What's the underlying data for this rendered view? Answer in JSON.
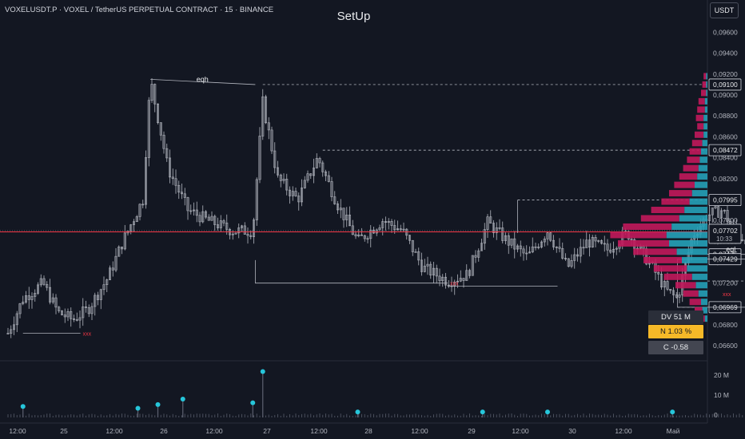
{
  "header": {
    "symbol": "VOXELUSDT.P · VOXEL / TetherUS PERPETUAL CONTRACT · 15 · BINANCE",
    "title": "SetUp",
    "currency": "USDT"
  },
  "info_boxes": {
    "dv": "DV 51 M",
    "n": "N 1.03 %",
    "c": "C  -0.58"
  },
  "chart_data": {
    "type": "candlestick",
    "price_axis": {
      "ticks": [
        "0,09600",
        "0,09400",
        "0,09200",
        "0,09000",
        "0,08800",
        "0,08600",
        "0,08400",
        "0,08200",
        "0,08000",
        "0,07800",
        "0,07600",
        "0,07400",
        "0,07200",
        "0,07000",
        "0,06800",
        "0,06600"
      ],
      "ylim": [
        0.0651,
        0.0968
      ]
    },
    "time_axis": {
      "ticks": [
        "12:00",
        "25",
        "12:00",
        "26",
        "12:00",
        "27",
        "12:00",
        "28",
        "12:00",
        "29",
        "12:00",
        "30",
        "12:00",
        "Май"
      ]
    },
    "volume_axis": {
      "ticks": [
        "20 M",
        "10 M",
        "0"
      ]
    },
    "price_path": [
      [
        0.0,
        0.0672
      ],
      [
        0.3,
        0.0705
      ],
      [
        0.7,
        0.072
      ],
      [
        1.0,
        0.0692
      ],
      [
        1.3,
        0.0685
      ],
      [
        1.6,
        0.0695
      ],
      [
        2.0,
        0.0725
      ],
      [
        2.3,
        0.076
      ],
      [
        2.7,
        0.08
      ],
      [
        2.85,
        0.0915
      ],
      [
        3.2,
        0.083
      ],
      [
        3.6,
        0.079
      ],
      [
        4.0,
        0.078
      ],
      [
        4.5,
        0.077
      ],
      [
        4.9,
        0.077
      ],
      [
        5.1,
        0.0893
      ],
      [
        5.4,
        0.082
      ],
      [
        5.8,
        0.08
      ],
      [
        6.2,
        0.084
      ],
      [
        6.6,
        0.0795
      ],
      [
        7.0,
        0.076
      ],
      [
        7.5,
        0.078
      ],
      [
        7.9,
        0.077
      ],
      [
        8.3,
        0.0735
      ],
      [
        8.8,
        0.0722
      ],
      [
        9.2,
        0.0728
      ],
      [
        9.6,
        0.0778
      ],
      [
        10.0,
        0.076
      ],
      [
        10.4,
        0.0745
      ],
      [
        10.8,
        0.077
      ],
      [
        11.2,
        0.0735
      ],
      [
        11.6,
        0.076
      ],
      [
        12.0,
        0.0752
      ],
      [
        12.4,
        0.0768
      ],
      [
        12.8,
        0.0742
      ],
      [
        13.2,
        0.0712
      ],
      [
        13.4,
        0.0705
      ],
      [
        13.7,
        0.0765
      ],
      [
        14.0,
        0.0785
      ],
      [
        14.3,
        0.079
      ],
      [
        14.6,
        0.0765
      ],
      [
        14.9,
        0.0762
      ],
      [
        15.1,
        0.077
      ]
    ],
    "projection": [
      [
        15.3,
        0.07429
      ],
      [
        16.5,
        0.0805
      ],
      [
        16.8,
        0.08
      ],
      [
        17.6,
        0.086
      ],
      [
        17.9,
        0.085
      ],
      [
        18.7,
        0.091
      ]
    ],
    "levels": [
      {
        "label": "0,09100",
        "price": 0.091,
        "x_from": 5.1
      },
      {
        "label": "0,08472",
        "price": 0.08472,
        "x_from": 6.3
      },
      {
        "label": "0,07995",
        "price": 0.07995,
        "x_from": 10.2
      },
      {
        "label": "0,07475",
        "price": 0.07475,
        "x_from": 14.8
      },
      {
        "label": "0,07429",
        "price": 0.07429,
        "x_from": 15.3
      },
      {
        "label": "0,06969",
        "price": 0.06969,
        "x_from": 13.4
      }
    ],
    "current_price": {
      "label": "0,07702",
      "countdown": "10:33",
      "price": 0.07702
    },
    "red_level": 0.0769,
    "annotations": {
      "eqh": "eqh",
      "eql": "eql",
      "stb": "stb",
      "xxx": "xxx"
    },
    "zones": [
      {
        "x": [
          13.4,
          16.1
        ],
        "y": [
          0.06969,
          0.07429
        ]
      },
      {
        "x": [
          10.2,
          18.9
        ],
        "y": [
          0.07995,
          0.07995
        ]
      }
    ],
    "volume_profile": [
      [
        0.0918,
        2,
        1
      ],
      [
        0.091,
        3,
        1
      ],
      [
        0.0902,
        4,
        1
      ],
      [
        0.0894,
        5,
        2
      ],
      [
        0.0886,
        6,
        2
      ],
      [
        0.0878,
        6,
        3
      ],
      [
        0.087,
        5,
        3
      ],
      [
        0.0862,
        7,
        3
      ],
      [
        0.0854,
        8,
        4
      ],
      [
        0.0846,
        9,
        5
      ],
      [
        0.0838,
        10,
        6
      ],
      [
        0.083,
        12,
        7
      ],
      [
        0.0822,
        14,
        8
      ],
      [
        0.0814,
        16,
        10
      ],
      [
        0.0806,
        18,
        12
      ],
      [
        0.0798,
        22,
        14
      ],
      [
        0.079,
        26,
        18
      ],
      [
        0.0782,
        30,
        22
      ],
      [
        0.0774,
        38,
        28
      ],
      [
        0.0766,
        44,
        32
      ],
      [
        0.0758,
        40,
        30
      ],
      [
        0.075,
        34,
        24
      ],
      [
        0.0742,
        30,
        20
      ],
      [
        0.0734,
        26,
        16
      ],
      [
        0.0726,
        22,
        12
      ],
      [
        0.0718,
        16,
        9
      ],
      [
        0.071,
        12,
        7
      ],
      [
        0.0702,
        9,
        5
      ],
      [
        0.0694,
        6,
        4
      ],
      [
        0.0686,
        4,
        2
      ]
    ],
    "volume_spikes": [
      [
        0.3,
        6
      ],
      [
        2.6,
        5
      ],
      [
        3.0,
        7
      ],
      [
        3.5,
        10
      ],
      [
        5.1,
        25
      ],
      [
        4.9,
        8
      ],
      [
        7.0,
        3
      ],
      [
        9.5,
        3
      ],
      [
        10.8,
        3
      ],
      [
        13.3,
        3
      ]
    ],
    "colors": {
      "up": "#26a69a",
      "down": "#ef5350",
      "candle": "#b2b5be",
      "projection": "#f23645",
      "profile_a": "#c2185b",
      "profile_b": "#26a1b8",
      "level_red": "#f23645"
    }
  }
}
